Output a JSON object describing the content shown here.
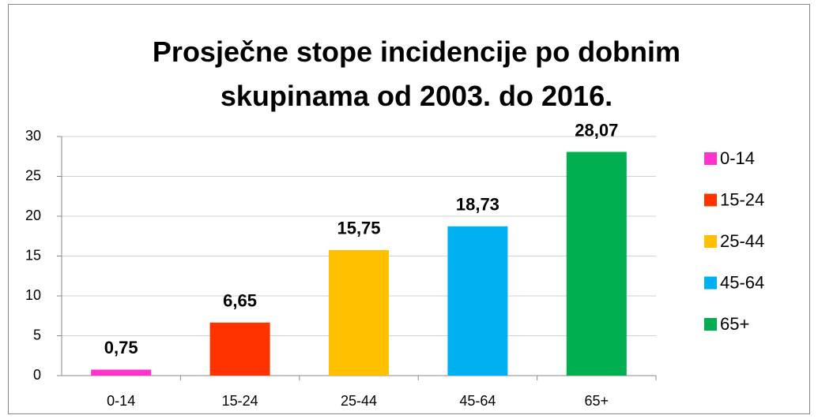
{
  "chart_data": {
    "type": "bar",
    "title": "Prosječne stope incidencije po dobnim skupinama od 2003. do 2016.",
    "categories": [
      "0-14",
      "15-24",
      "25-44",
      "45-64",
      "65+"
    ],
    "values": [
      0.75,
      6.65,
      15.75,
      18.73,
      28.07
    ],
    "value_labels": [
      "0,75",
      "6,65",
      "15,75",
      "18,73",
      "28,07"
    ],
    "colors": [
      "#ff33cc",
      "#ff3300",
      "#ffc000",
      "#00b0f0",
      "#00b050"
    ],
    "ylim": [
      0,
      30
    ],
    "yticks": [
      0,
      5,
      10,
      15,
      20,
      25,
      30
    ],
    "grid": true,
    "legend": "right"
  }
}
